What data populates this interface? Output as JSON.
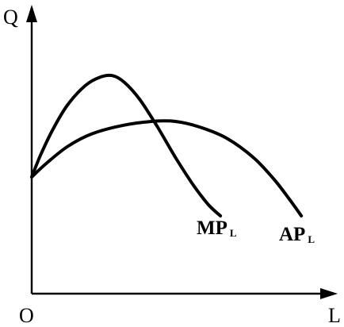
{
  "chart_data": {
    "type": "line",
    "title": "",
    "xlabel": "L",
    "ylabel": "Q",
    "origin_label": "O",
    "xlim": [
      0,
      10
    ],
    "ylim": [
      0,
      10
    ],
    "grid": false,
    "legend": "none",
    "series": [
      {
        "name": "MP",
        "subscript": "L",
        "x": [
          0,
          0.3,
          0.7,
          1.2,
          1.8,
          2.3,
          2.7,
          3.1,
          3.6,
          4.2,
          4.8,
          5.4,
          5.9,
          6.3
        ],
        "y": [
          4.2,
          5.0,
          5.9,
          6.8,
          7.5,
          7.8,
          7.85,
          7.6,
          7.0,
          6.0,
          4.9,
          3.9,
          3.2,
          2.8
        ]
      },
      {
        "name": "AP",
        "subscript": "L",
        "x": [
          0,
          0.5,
          1.2,
          2.0,
          3.0,
          4.0,
          4.8,
          5.6,
          6.5,
          7.4,
          8.1,
          8.6,
          9.0
        ],
        "y": [
          4.2,
          4.7,
          5.3,
          5.75,
          6.05,
          6.2,
          6.2,
          6.0,
          5.6,
          4.9,
          4.1,
          3.4,
          2.8
        ]
      }
    ]
  }
}
